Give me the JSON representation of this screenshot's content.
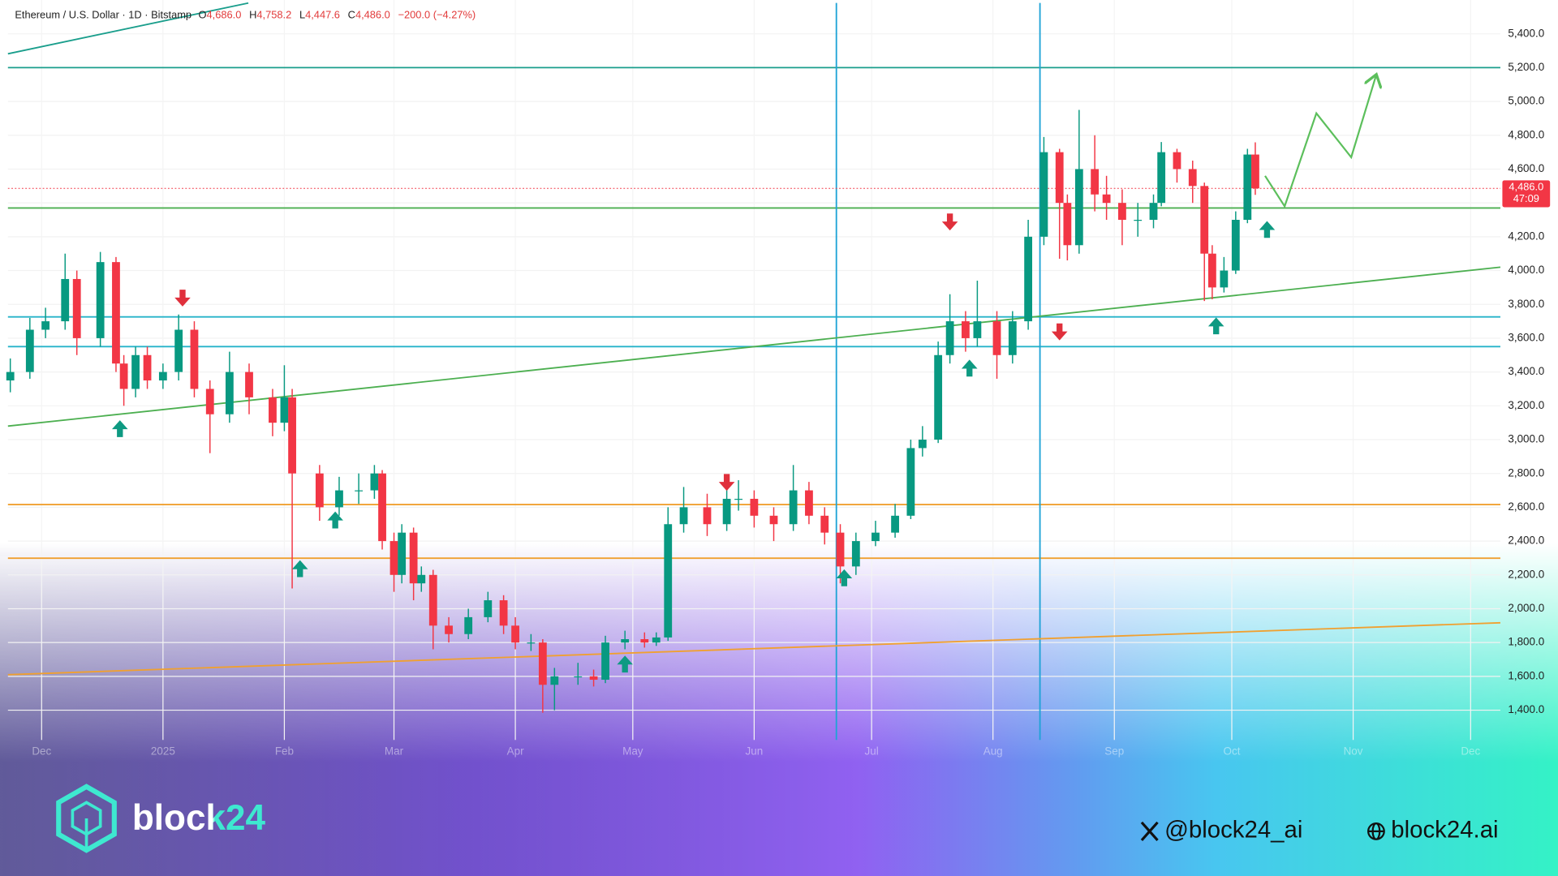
{
  "chart_data": {
    "type": "candlestick",
    "header": {
      "symbol": "Ethereum / U.S. Dollar · 1D · Bitstamp",
      "o_label": "O",
      "o_value": "4,686.0",
      "h_label": "H",
      "h_value": "4,758.2",
      "l_label": "L",
      "l_value": "4,447.6",
      "c_label": "C",
      "c_value": "4,486.0",
      "change": "−200.0 (−4.27%)"
    },
    "x": [
      -8,
      -3,
      1,
      6,
      9,
      15,
      19,
      21,
      24,
      27,
      31,
      35,
      39,
      43,
      48,
      53,
      59,
      62,
      64,
      71,
      76,
      81,
      85,
      87,
      90,
      92,
      95,
      97,
      100,
      104,
      109,
      114,
      118,
      121,
      125,
      128,
      131,
      137,
      141,
      144,
      149,
      154,
      157,
      160,
      164,
      170,
      175,
      178,
      182,
      187,
      192,
      196,
      200,
      204,
      208,
      213,
      218,
      222,
      225,
      229,
      232,
      236,
      239,
      244,
      248,
      252,
      256,
      260,
      262,
      265,
      269,
      272,
      276,
      280,
      284,
      286,
      290,
      294,
      297,
      299,
      302,
      305,
      308,
      310
    ],
    "open": [
      3350,
      3400,
      3650,
      3700,
      3950,
      3600,
      4050,
      3450,
      3300,
      3500,
      3350,
      3400,
      3650,
      3300,
      3150,
      3400,
      3250,
      3100,
      3250,
      2800,
      2600,
      2700,
      2700,
      2800,
      2400,
      2200,
      2450,
      2150,
      2200,
      1900,
      1850,
      1950,
      2050,
      1900,
      1800,
      1800,
      1550,
      1600,
      1600,
      1580,
      1800,
      1820,
      1800,
      1830,
      2500,
      2600,
      2500,
      2650,
      2650,
      2550,
      2500,
      2700,
      2550,
      2450,
      2250,
      2400,
      2450,
      2550,
      2950,
      3000,
      3500,
      3700,
      3600,
      3700,
      3500,
      3700,
      4200,
      4700,
      4400,
      4150,
      4600,
      4450,
      4400,
      4300,
      4300,
      4400,
      4700,
      4600,
      4500,
      4100,
      3900,
      4000,
      4300,
      4686
    ],
    "high": [
      3480,
      3720,
      3780,
      4100,
      4000,
      4110,
      4080,
      3500,
      3550,
      3550,
      3450,
      3740,
      3700,
      3350,
      3520,
      3450,
      3300,
      3440,
      3300,
      2850,
      2780,
      2800,
      2850,
      2820,
      2450,
      2500,
      2480,
      2250,
      2230,
      1950,
      2000,
      2100,
      2080,
      1950,
      1850,
      1820,
      1650,
      1680,
      1640,
      1840,
      1870,
      1860,
      1860,
      2600,
      2720,
      2680,
      2740,
      2760,
      2700,
      2600,
      2850,
      2750,
      2600,
      2500,
      2450,
      2520,
      2620,
      3000,
      3080,
      3580,
      3860,
      3760,
      3940,
      3760,
      3760,
      4300,
      4790,
      4720,
      4450,
      4950,
      4800,
      4560,
      4480,
      4400,
      4450,
      4760,
      4720,
      4650,
      4520,
      4150,
      4080,
      4350,
      4720,
      4758.2
    ],
    "low": [
      3280,
      3360,
      3600,
      3650,
      3500,
      3550,
      3400,
      3200,
      3250,
      3300,
      3300,
      3350,
      3250,
      2920,
      3100,
      3150,
      3020,
      3050,
      2120,
      2520,
      2550,
      2620,
      2650,
      2350,
      2100,
      2150,
      2050,
      2100,
      1760,
      1800,
      1820,
      1920,
      1850,
      1760,
      1750,
      1385,
      1400,
      1550,
      1540,
      1560,
      1760,
      1770,
      1780,
      1810,
      2450,
      2430,
      2460,
      2580,
      2480,
      2400,
      2460,
      2500,
      2380,
      2150,
      2200,
      2370,
      2420,
      2530,
      2900,
      2980,
      3450,
      3520,
      3550,
      3360,
      3450,
      3650,
      4150,
      4070,
      4060,
      4100,
      4350,
      4300,
      4150,
      4200,
      4250,
      4380,
      4520,
      4400,
      3820,
      3830,
      3870,
      3980,
      4280,
      4447.6
    ],
    "close": [
      3400,
      3650,
      3700,
      3950,
      3600,
      4050,
      3450,
      3300,
      3500,
      3350,
      3400,
      3650,
      3300,
      3150,
      3400,
      3250,
      3100,
      3250,
      2800,
      2600,
      2700,
      2700,
      2800,
      2400,
      2200,
      2450,
      2150,
      2200,
      1900,
      1850,
      1950,
      2050,
      1900,
      1800,
      1800,
      1550,
      1600,
      1600,
      1580,
      1800,
      1820,
      1800,
      1830,
      2500,
      2600,
      2500,
      2650,
      2650,
      2550,
      2500,
      2700,
      2550,
      2450,
      2250,
      2400,
      2450,
      2550,
      2950,
      3000,
      3500,
      3700,
      3600,
      3700,
      3500,
      3700,
      4200,
      4700,
      4400,
      4150,
      4600,
      4450,
      4400,
      4300,
      4300,
      4400,
      4700,
      4600,
      4500,
      4100,
      3900,
      4000,
      4300,
      4686,
      4486
    ],
    "up_color": "#089981",
    "down_color": "#f23645",
    "xlim": [
      -8.6,
      372.6
    ],
    "ylim": [
      1224,
      5600
    ],
    "xticks": [
      {
        "value": 0,
        "label": "Dec"
      },
      {
        "value": 31,
        "label": "2025"
      },
      {
        "value": 62,
        "label": "Feb"
      },
      {
        "value": 90,
        "label": "Mar"
      },
      {
        "value": 121,
        "label": "Apr"
      },
      {
        "value": 151,
        "label": "May"
      },
      {
        "value": 182,
        "label": "Jun"
      },
      {
        "value": 212,
        "label": "Jul"
      },
      {
        "value": 243,
        "label": "Aug"
      },
      {
        "value": 274,
        "label": "Sep"
      },
      {
        "value": 304,
        "label": "Oct"
      },
      {
        "value": 335,
        "label": "Nov"
      },
      {
        "value": 365,
        "label": "Dec"
      }
    ],
    "yticks": [
      {
        "value": 1400,
        "label": "1,400.0"
      },
      {
        "value": 1600,
        "label": "1,600.0"
      },
      {
        "value": 1800,
        "label": "1,800.0"
      },
      {
        "value": 2000,
        "label": "2,000.0"
      },
      {
        "value": 2200,
        "label": "2,200.0"
      },
      {
        "value": 2400,
        "label": "2,400.0"
      },
      {
        "value": 2600,
        "label": "2,600.0"
      },
      {
        "value": 2800,
        "label": "2,800.0"
      },
      {
        "value": 3000,
        "label": "3,000.0"
      },
      {
        "value": 3200,
        "label": "3,200.0"
      },
      {
        "value": 3400,
        "label": "3,400.0"
      },
      {
        "value": 3600,
        "label": "3,600.0"
      },
      {
        "value": 3800,
        "label": "3,800.0"
      },
      {
        "value": 4000,
        "label": "4,000.0"
      },
      {
        "value": 4200,
        "label": "4,200.0"
      },
      {
        "value": 4400,
        "label": "4,400.0"
      },
      {
        "value": 4600,
        "label": "4,600.0"
      },
      {
        "value": 4800,
        "label": "4,800.0"
      },
      {
        "value": 5000,
        "label": "5,000.0"
      },
      {
        "value": 5200,
        "label": "5,200.0"
      },
      {
        "value": 5400,
        "label": "5,400.0"
      }
    ],
    "levels": [
      {
        "value": 5200,
        "color": "#1a9e8c"
      },
      {
        "value": 4370,
        "color": "#4caf50"
      },
      {
        "value": 3726,
        "color": "#26b3c9"
      },
      {
        "value": 3550,
        "color": "#26b3c9"
      },
      {
        "value": 2616,
        "color": "#f0a030"
      },
      {
        "value": 2299,
        "color": "#f0a030"
      }
    ],
    "vlines": [
      {
        "value": 203,
        "color": "#1fa3d6"
      },
      {
        "value": 255,
        "color": "#1fa3d6"
      }
    ],
    "trendlines": [
      {
        "x": [
          -8.6,
          372.6
        ],
        "y": [
          3080,
          4020
        ],
        "color": "#4caf50"
      },
      {
        "x": [
          -8.6,
          372.6
        ],
        "y": [
          1610,
          1917
        ],
        "color": "#f0a030"
      },
      {
        "x": [
          -8.6,
          52.8
        ],
        "y": [
          5282,
          5582
        ],
        "color": "#1a9e8c"
      }
    ],
    "projection": {
      "x": [
        312.5,
        317.5,
        325.6,
        334.5,
        340.8
      ],
      "y": [
        4560,
        4380,
        4930,
        4670,
        5150
      ],
      "color": "#5cbf5c"
    },
    "signals_up": {
      "x": [
        20,
        66,
        75,
        149,
        205,
        237,
        300,
        313
      ],
      "y": [
        3062,
        2234,
        2522,
        1670,
        2180,
        3420,
        3670,
        4240
      ],
      "color": "#0e9a82"
    },
    "signals_down": {
      "x": [
        36,
        175,
        232,
        260
      ],
      "y": [
        3840,
        2750,
        4290,
        3640
      ],
      "color": "#e0303c"
    },
    "last_price": {
      "value": 4486,
      "label": "4,486.0",
      "countdown": "47:09",
      "color": "#f23645"
    },
    "brand": {
      "name": "block24",
      "x_handle": "@block24_ai",
      "site": "block24.ai"
    }
  }
}
